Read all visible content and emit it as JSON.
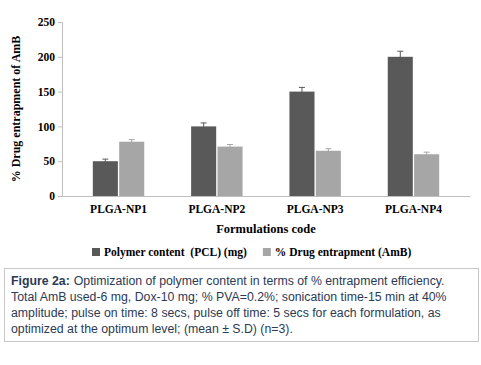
{
  "chart_data": {
    "type": "bar",
    "y_label": "% Drug entrapment of AmB",
    "x_label": "Formulations code",
    "categories": [
      "PLGA-NP1",
      "PLGA-NP2",
      "PLGA-NP3",
      "PLGA-NP4"
    ],
    "series": [
      {
        "name": "Polymer content  (PCL) (mg)",
        "color": "#595959",
        "values": [
          50,
          100,
          150,
          200
        ],
        "errors": [
          3,
          5,
          6,
          8
        ]
      },
      {
        "name": "% Drug entrapment (AmB)",
        "color": "#a6a6a6",
        "values": [
          78,
          71,
          65,
          60
        ],
        "errors": [
          3,
          3,
          3,
          3
        ]
      }
    ],
    "ylim": [
      0,
      250
    ],
    "yticks": [
      0,
      50,
      100,
      150,
      200,
      250
    ],
    "grid": false,
    "legend": "bottom",
    "caption": {
      "label": "Figure 2a:",
      "text": "Optimization of polymer content in terms of % entrapment efficiency. Total AmB used-6 mg, Dox-10 mg; % PVA=0.2%; sonication time-15 min at 40% amplitude; pulse on time: 8 secs, pulse off time: 5 secs for each formulation, as optimized at the optimum level; (mean ± S.D) (n=3)."
    }
  }
}
